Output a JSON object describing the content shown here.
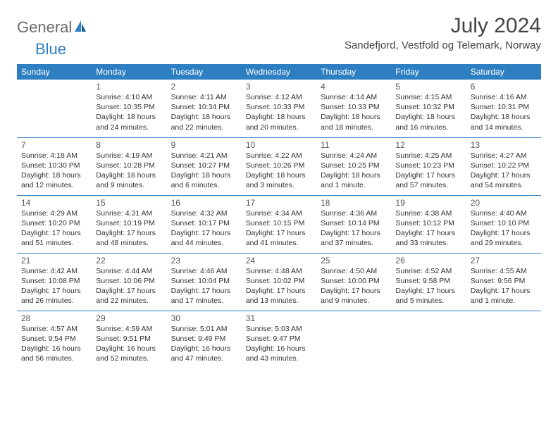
{
  "brand": {
    "name1": "General",
    "name2": "Blue"
  },
  "title": "July 2024",
  "location": "Sandefjord, Vestfold og Telemark, Norway",
  "colors": {
    "accent": "#2e7fc1",
    "text": "#333333",
    "header_bg": "#2e7fc1",
    "header_fg": "#ffffff"
  },
  "weekdays": [
    "Sunday",
    "Monday",
    "Tuesday",
    "Wednesday",
    "Thursday",
    "Friday",
    "Saturday"
  ],
  "weeks": [
    [
      null,
      {
        "d": "1",
        "sr": "Sunrise: 4:10 AM",
        "ss": "Sunset: 10:35 PM",
        "dl1": "Daylight: 18 hours",
        "dl2": "and 24 minutes."
      },
      {
        "d": "2",
        "sr": "Sunrise: 4:11 AM",
        "ss": "Sunset: 10:34 PM",
        "dl1": "Daylight: 18 hours",
        "dl2": "and 22 minutes."
      },
      {
        "d": "3",
        "sr": "Sunrise: 4:12 AM",
        "ss": "Sunset: 10:33 PM",
        "dl1": "Daylight: 18 hours",
        "dl2": "and 20 minutes."
      },
      {
        "d": "4",
        "sr": "Sunrise: 4:14 AM",
        "ss": "Sunset: 10:33 PM",
        "dl1": "Daylight: 18 hours",
        "dl2": "and 18 minutes."
      },
      {
        "d": "5",
        "sr": "Sunrise: 4:15 AM",
        "ss": "Sunset: 10:32 PM",
        "dl1": "Daylight: 18 hours",
        "dl2": "and 16 minutes."
      },
      {
        "d": "6",
        "sr": "Sunrise: 4:16 AM",
        "ss": "Sunset: 10:31 PM",
        "dl1": "Daylight: 18 hours",
        "dl2": "and 14 minutes."
      }
    ],
    [
      {
        "d": "7",
        "sr": "Sunrise: 4:18 AM",
        "ss": "Sunset: 10:30 PM",
        "dl1": "Daylight: 18 hours",
        "dl2": "and 12 minutes."
      },
      {
        "d": "8",
        "sr": "Sunrise: 4:19 AM",
        "ss": "Sunset: 10:28 PM",
        "dl1": "Daylight: 18 hours",
        "dl2": "and 9 minutes."
      },
      {
        "d": "9",
        "sr": "Sunrise: 4:21 AM",
        "ss": "Sunset: 10:27 PM",
        "dl1": "Daylight: 18 hours",
        "dl2": "and 6 minutes."
      },
      {
        "d": "10",
        "sr": "Sunrise: 4:22 AM",
        "ss": "Sunset: 10:26 PM",
        "dl1": "Daylight: 18 hours",
        "dl2": "and 3 minutes."
      },
      {
        "d": "11",
        "sr": "Sunrise: 4:24 AM",
        "ss": "Sunset: 10:25 PM",
        "dl1": "Daylight: 18 hours",
        "dl2": "and 1 minute."
      },
      {
        "d": "12",
        "sr": "Sunrise: 4:25 AM",
        "ss": "Sunset: 10:23 PM",
        "dl1": "Daylight: 17 hours",
        "dl2": "and 57 minutes."
      },
      {
        "d": "13",
        "sr": "Sunrise: 4:27 AM",
        "ss": "Sunset: 10:22 PM",
        "dl1": "Daylight: 17 hours",
        "dl2": "and 54 minutes."
      }
    ],
    [
      {
        "d": "14",
        "sr": "Sunrise: 4:29 AM",
        "ss": "Sunset: 10:20 PM",
        "dl1": "Daylight: 17 hours",
        "dl2": "and 51 minutes."
      },
      {
        "d": "15",
        "sr": "Sunrise: 4:31 AM",
        "ss": "Sunset: 10:19 PM",
        "dl1": "Daylight: 17 hours",
        "dl2": "and 48 minutes."
      },
      {
        "d": "16",
        "sr": "Sunrise: 4:32 AM",
        "ss": "Sunset: 10:17 PM",
        "dl1": "Daylight: 17 hours",
        "dl2": "and 44 minutes."
      },
      {
        "d": "17",
        "sr": "Sunrise: 4:34 AM",
        "ss": "Sunset: 10:15 PM",
        "dl1": "Daylight: 17 hours",
        "dl2": "and 41 minutes."
      },
      {
        "d": "18",
        "sr": "Sunrise: 4:36 AM",
        "ss": "Sunset: 10:14 PM",
        "dl1": "Daylight: 17 hours",
        "dl2": "and 37 minutes."
      },
      {
        "d": "19",
        "sr": "Sunrise: 4:38 AM",
        "ss": "Sunset: 10:12 PM",
        "dl1": "Daylight: 17 hours",
        "dl2": "and 33 minutes."
      },
      {
        "d": "20",
        "sr": "Sunrise: 4:40 AM",
        "ss": "Sunset: 10:10 PM",
        "dl1": "Daylight: 17 hours",
        "dl2": "and 29 minutes."
      }
    ],
    [
      {
        "d": "21",
        "sr": "Sunrise: 4:42 AM",
        "ss": "Sunset: 10:08 PM",
        "dl1": "Daylight: 17 hours",
        "dl2": "and 26 minutes."
      },
      {
        "d": "22",
        "sr": "Sunrise: 4:44 AM",
        "ss": "Sunset: 10:06 PM",
        "dl1": "Daylight: 17 hours",
        "dl2": "and 22 minutes."
      },
      {
        "d": "23",
        "sr": "Sunrise: 4:46 AM",
        "ss": "Sunset: 10:04 PM",
        "dl1": "Daylight: 17 hours",
        "dl2": "and 17 minutes."
      },
      {
        "d": "24",
        "sr": "Sunrise: 4:48 AM",
        "ss": "Sunset: 10:02 PM",
        "dl1": "Daylight: 17 hours",
        "dl2": "and 13 minutes."
      },
      {
        "d": "25",
        "sr": "Sunrise: 4:50 AM",
        "ss": "Sunset: 10:00 PM",
        "dl1": "Daylight: 17 hours",
        "dl2": "and 9 minutes."
      },
      {
        "d": "26",
        "sr": "Sunrise: 4:52 AM",
        "ss": "Sunset: 9:58 PM",
        "dl1": "Daylight: 17 hours",
        "dl2": "and 5 minutes."
      },
      {
        "d": "27",
        "sr": "Sunrise: 4:55 AM",
        "ss": "Sunset: 9:56 PM",
        "dl1": "Daylight: 17 hours",
        "dl2": "and 1 minute."
      }
    ],
    [
      {
        "d": "28",
        "sr": "Sunrise: 4:57 AM",
        "ss": "Sunset: 9:54 PM",
        "dl1": "Daylight: 16 hours",
        "dl2": "and 56 minutes."
      },
      {
        "d": "29",
        "sr": "Sunrise: 4:59 AM",
        "ss": "Sunset: 9:51 PM",
        "dl1": "Daylight: 16 hours",
        "dl2": "and 52 minutes."
      },
      {
        "d": "30",
        "sr": "Sunrise: 5:01 AM",
        "ss": "Sunset: 9:49 PM",
        "dl1": "Daylight: 16 hours",
        "dl2": "and 47 minutes."
      },
      {
        "d": "31",
        "sr": "Sunrise: 5:03 AM",
        "ss": "Sunset: 9:47 PM",
        "dl1": "Daylight: 16 hours",
        "dl2": "and 43 minutes."
      },
      null,
      null,
      null
    ]
  ]
}
